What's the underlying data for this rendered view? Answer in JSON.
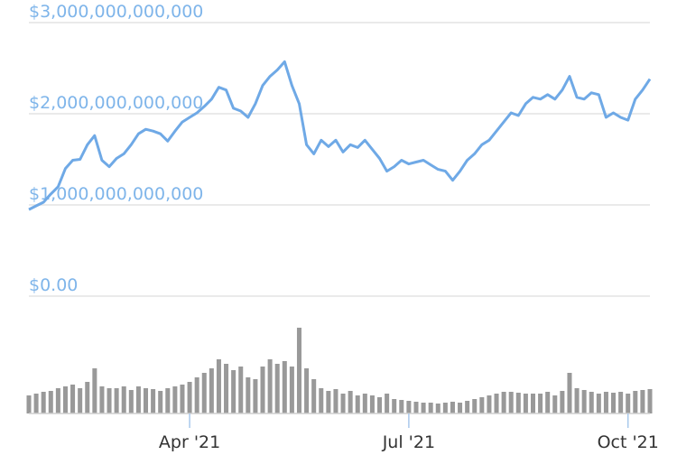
{
  "chart_data": {
    "type": "line",
    "categories": [
      null,
      null,
      null,
      null,
      null,
      null,
      null,
      null,
      null,
      null,
      null,
      null,
      null,
      null,
      null,
      null,
      null,
      null,
      null,
      null,
      null,
      null,
      "Apr '21",
      null,
      null,
      null,
      null,
      null,
      null,
      null,
      null,
      null,
      null,
      null,
      null,
      null,
      null,
      null,
      null,
      null,
      null,
      null,
      null,
      null,
      null,
      null,
      null,
      null,
      null,
      null,
      null,
      null,
      "Jul '21",
      null,
      null,
      null,
      null,
      null,
      null,
      null,
      null,
      null,
      null,
      null,
      null,
      null,
      null,
      null,
      null,
      null,
      null,
      null,
      null,
      null,
      null,
      null,
      null,
      null,
      null,
      null,
      null,
      null,
      "Oct '21",
      null,
      null,
      null
    ],
    "ylim": [
      0,
      3000000000000
    ],
    "yticks": [
      {
        "value": 0,
        "label": "$0.00"
      },
      {
        "value": 1000000000000,
        "label": "$1,000,000,000,000"
      },
      {
        "value": 2000000000000,
        "label": "$2,000,000,000,000"
      },
      {
        "value": 3000000000000,
        "label": "$3,000,000,000,000"
      }
    ],
    "y2lim": [
      0,
      400000000000
    ],
    "grid": true,
    "series": [
      {
        "type": "line",
        "color": "#6fa9e6",
        "values": [
          950000000000,
          990000000000,
          1030000000000,
          1120000000000,
          1200000000000,
          1400000000000,
          1490000000000,
          1500000000000,
          1660000000000,
          1760000000000,
          1490000000000,
          1420000000000,
          1510000000000,
          1560000000000,
          1660000000000,
          1780000000000,
          1830000000000,
          1810000000000,
          1780000000000,
          1700000000000,
          1810000000000,
          1910000000000,
          1960000000000,
          2010000000000,
          2080000000000,
          2160000000000,
          2290000000000,
          2260000000000,
          2060000000000,
          2030000000000,
          1960000000000,
          2110000000000,
          2310000000000,
          2410000000000,
          2480000000000,
          2570000000000,
          2310000000000,
          2110000000000,
          1660000000000,
          1560000000000,
          1710000000000,
          1640000000000,
          1710000000000,
          1580000000000,
          1660000000000,
          1630000000000,
          1710000000000,
          1610000000000,
          1510000000000,
          1370000000000,
          1420000000000,
          1490000000000,
          1450000000000,
          1470000000000,
          1490000000000,
          1440000000000,
          1390000000000,
          1370000000000,
          1270000000000,
          1370000000000,
          1490000000000,
          1560000000000,
          1660000000000,
          1710000000000,
          1810000000000,
          1910000000000,
          2010000000000,
          1980000000000,
          2110000000000,
          2180000000000,
          2160000000000,
          2210000000000,
          2160000000000,
          2260000000000,
          2410000000000,
          2180000000000,
          2160000000000,
          2230000000000,
          2210000000000,
          1960000000000,
          2010000000000,
          1960000000000,
          1930000000000,
          2160000000000,
          2260000000000,
          2380000000000
        ]
      },
      {
        "type": "bar",
        "axis": "y2",
        "color": "#999999",
        "values": [
          80000000000,
          88000000000,
          96000000000,
          100000000000,
          112000000000,
          120000000000,
          128000000000,
          112000000000,
          140000000000,
          200000000000,
          120000000000,
          112000000000,
          112000000000,
          120000000000,
          104000000000,
          120000000000,
          112000000000,
          108000000000,
          100000000000,
          112000000000,
          120000000000,
          128000000000,
          140000000000,
          160000000000,
          180000000000,
          200000000000,
          240000000000,
          220000000000,
          192000000000,
          208000000000,
          160000000000,
          152000000000,
          208000000000,
          240000000000,
          220000000000,
          232000000000,
          208000000000,
          380000000000,
          200000000000,
          152000000000,
          112000000000,
          100000000000,
          108000000000,
          88000000000,
          100000000000,
          80000000000,
          88000000000,
          80000000000,
          72000000000,
          88000000000,
          64000000000,
          60000000000,
          56000000000,
          52000000000,
          48000000000,
          48000000000,
          44000000000,
          48000000000,
          52000000000,
          48000000000,
          56000000000,
          64000000000,
          72000000000,
          80000000000,
          88000000000,
          96000000000,
          96000000000,
          92000000000,
          88000000000,
          88000000000,
          88000000000,
          96000000000,
          80000000000,
          100000000000,
          180000000000,
          112000000000,
          104000000000,
          96000000000,
          88000000000,
          96000000000,
          92000000000,
          96000000000,
          88000000000,
          100000000000,
          104000000000,
          108000000000
        ]
      }
    ]
  }
}
